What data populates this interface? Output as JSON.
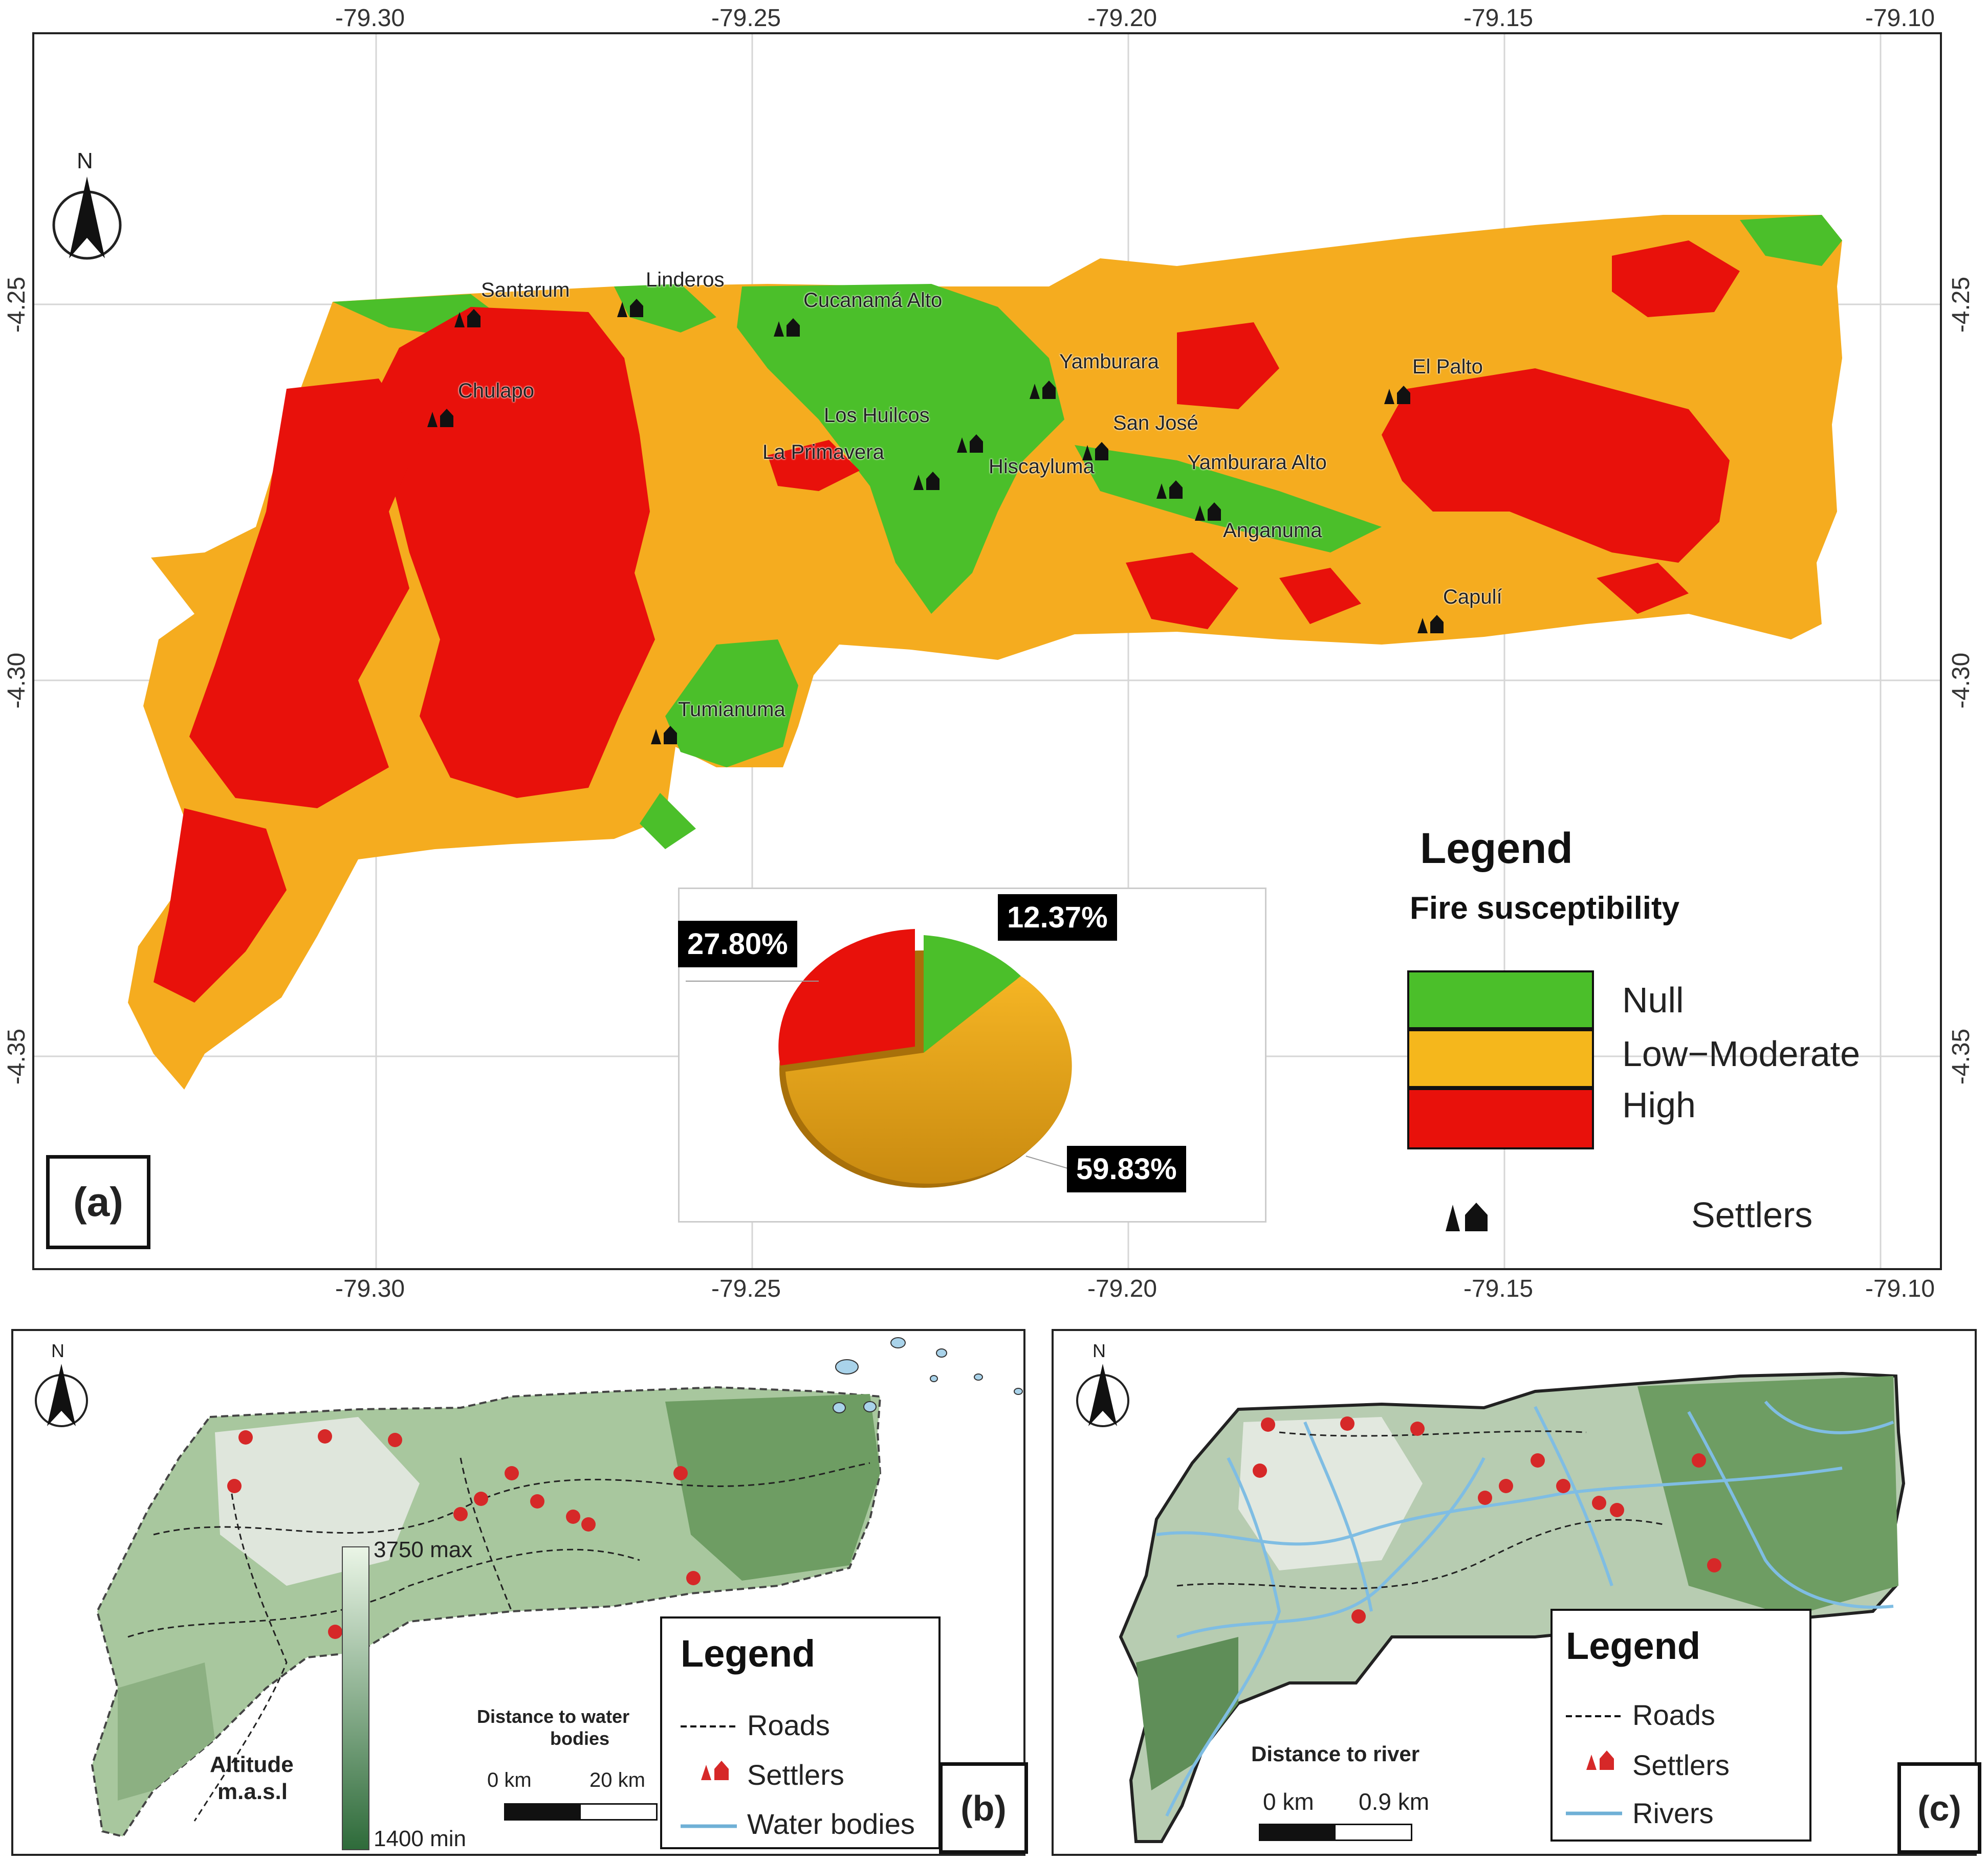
{
  "panel_a": {
    "label": "(a)",
    "lon_ticks": [
      "-79.30",
      "-79.25",
      "-79.20",
      "-79.15",
      "-79.10"
    ],
    "lat_ticks": [
      "-4.25",
      "-4.30",
      "-4.35"
    ],
    "north": "N",
    "towns": [
      "Santarum",
      "Linderos",
      "Cucanamá Alto",
      "Chulapo",
      "Yamburara",
      "El Palto",
      "Los Huilcos",
      "San José",
      "La Primavera",
      "Hiscayluma",
      "Yamburara Alto",
      "Anganuma",
      "Capulí",
      "Tumianuma"
    ],
    "legend": {
      "title": "Legend",
      "subtitle": "Fire susceptibility",
      "items": [
        {
          "label": "Null",
          "color": "#4bbf2a"
        },
        {
          "label": "Low−Moderate",
          "color": "#f5ac1f"
        },
        {
          "label": "High",
          "color": "#e8110b"
        }
      ],
      "settlers": "Settlers"
    },
    "pie": {
      "null_pct": "12.37%",
      "low_pct": "59.83%",
      "high_pct": "27.80%"
    }
  },
  "panel_b": {
    "label": "(b)",
    "north": "N",
    "altitude_title": "Altitude",
    "altitude_unit": "m.a.s.l",
    "alt_max": "3750 max",
    "alt_min": "1400 min",
    "scale_title_1": "Distance to water",
    "scale_title_2": "bodies",
    "scale_start": "0 km",
    "scale_end": "20 km",
    "legend": {
      "title": "Legend",
      "items": [
        "Roads",
        "Settlers",
        "Water bodies"
      ]
    }
  },
  "panel_c": {
    "label": "(c)",
    "north": "N",
    "scale_title": "Distance to river",
    "scale_start": "0 km",
    "scale_end": "0.9 km",
    "legend": {
      "title": "Legend",
      "items": [
        "Roads",
        "Settlers",
        "Rivers"
      ]
    }
  }
}
